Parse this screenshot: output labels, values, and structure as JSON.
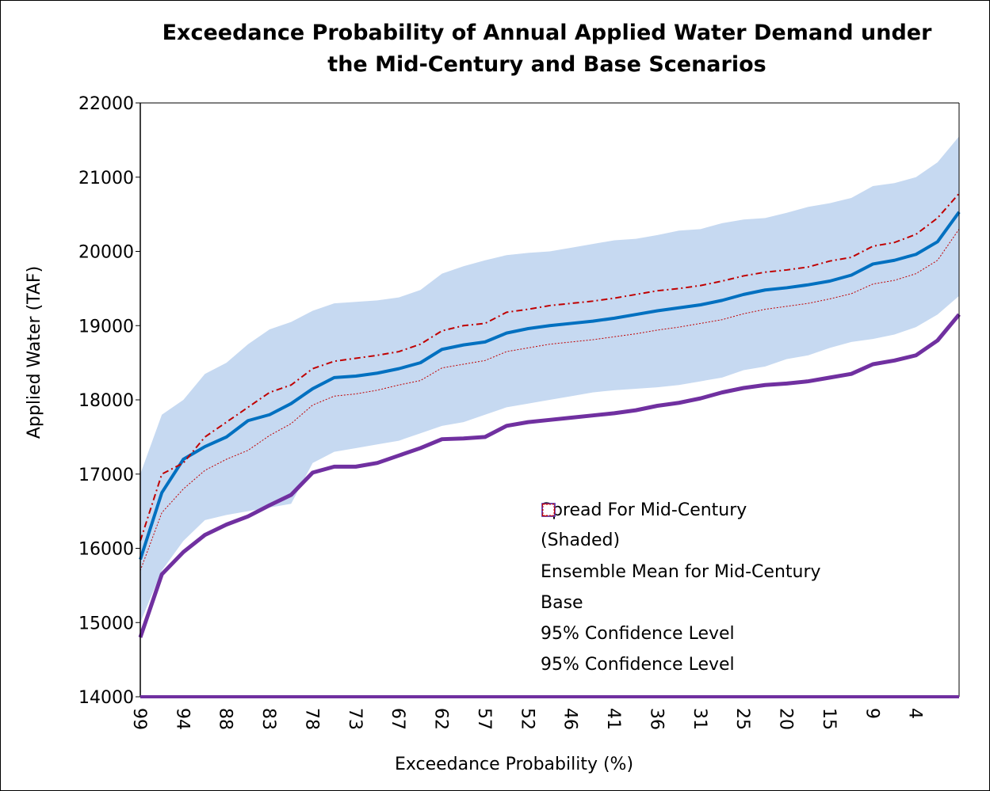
{
  "chart_data": {
    "type": "line",
    "title": [
      "Exceedance Probability of Annual Applied Water Demand under",
      "the Mid-Century and Base Scenarios"
    ],
    "x_label": "Exceedance Probability (%)",
    "y_label": "Applied Water (TAF)",
    "categories": [
      99,
      null,
      94,
      null,
      88,
      null,
      83,
      null,
      78,
      null,
      73,
      null,
      67,
      null,
      62,
      null,
      57,
      null,
      52,
      null,
      46,
      null,
      41,
      null,
      36,
      null,
      31,
      null,
      25,
      null,
      20,
      null,
      15,
      null,
      9,
      null,
      4,
      null,
      null
    ],
    "ylim": [
      14000,
      22000
    ],
    "yticks": [
      14000,
      15000,
      16000,
      17000,
      18000,
      19000,
      20000,
      21000,
      22000
    ],
    "grid": false,
    "legend": "bottom-right",
    "series": [
      {
        "name": "Spread For Mid-Century (Shaded)",
        "color": "#c6d9f1",
        "line_style": "band",
        "upper": [
          17000,
          17800,
          18000,
          18350,
          18500,
          18750,
          18950,
          19050,
          19200,
          19300,
          19320,
          19340,
          19380,
          19480,
          19700,
          19800,
          19880,
          19950,
          19980,
          20000,
          20050,
          20100,
          20150,
          20170,
          20220,
          20280,
          20300,
          20380,
          20430,
          20450,
          20520,
          20600,
          20650,
          20720,
          20880,
          20920,
          21000,
          21200,
          21550
        ],
        "lower": [
          15000,
          15700,
          16100,
          16380,
          16450,
          16500,
          16550,
          16600,
          17150,
          17300,
          17350,
          17400,
          17450,
          17550,
          17650,
          17700,
          17800,
          17900,
          17950,
          18000,
          18050,
          18100,
          18130,
          18150,
          18170,
          18200,
          18250,
          18300,
          18400,
          18450,
          18550,
          18600,
          18700,
          18780,
          18820,
          18880,
          18980,
          19150,
          19400
        ]
      },
      {
        "name": "Ensemble Mean for Mid-Century",
        "color": "#0070c0",
        "line_style": "thick",
        "values": [
          15850,
          16750,
          17200,
          17370,
          17500,
          17720,
          17800,
          17950,
          18150,
          18300,
          18320,
          18360,
          18420,
          18500,
          18680,
          18740,
          18780,
          18900,
          18960,
          19000,
          19030,
          19060,
          19100,
          19150,
          19200,
          19240,
          19280,
          19340,
          19420,
          19480,
          19510,
          19550,
          19600,
          19680,
          19830,
          19880,
          19960,
          20130,
          20530
        ]
      },
      {
        "name": "Base",
        "color": "#7030a0",
        "line_style": "heavy",
        "values": [
          14800,
          15650,
          15950,
          16180,
          16320,
          16430,
          16580,
          16720,
          17020,
          17100,
          17100,
          17150,
          17250,
          17350,
          17470,
          17480,
          17500,
          17650,
          17700,
          17730,
          17760,
          17790,
          17820,
          17860,
          17920,
          17960,
          18020,
          18100,
          18160,
          18200,
          18220,
          18250,
          18300,
          18350,
          18480,
          18530,
          18600,
          18800,
          19150
        ]
      },
      {
        "name": "95% Confidence Level",
        "color": "#c00000",
        "line_style": "dash-dot",
        "values": [
          16100,
          17000,
          17150,
          17500,
          17700,
          17900,
          18100,
          18200,
          18420,
          18520,
          18560,
          18600,
          18650,
          18750,
          18930,
          19000,
          19030,
          19180,
          19220,
          19270,
          19300,
          19330,
          19370,
          19420,
          19470,
          19500,
          19540,
          19600,
          19670,
          19720,
          19750,
          19790,
          19870,
          19920,
          20070,
          20120,
          20230,
          20450,
          20780
        ]
      },
      {
        "name": "95% Confidence Level",
        "color": "#c00000",
        "line_style": "dotted",
        "values": [
          15700,
          16480,
          16800,
          17050,
          17200,
          17320,
          17520,
          17680,
          17930,
          18050,
          18080,
          18130,
          18200,
          18260,
          18430,
          18480,
          18530,
          18650,
          18700,
          18750,
          18780,
          18810,
          18850,
          18890,
          18940,
          18980,
          19030,
          19080,
          19160,
          19220,
          19260,
          19300,
          19360,
          19430,
          19560,
          19610,
          19700,
          19880,
          20300
        ]
      }
    ]
  }
}
